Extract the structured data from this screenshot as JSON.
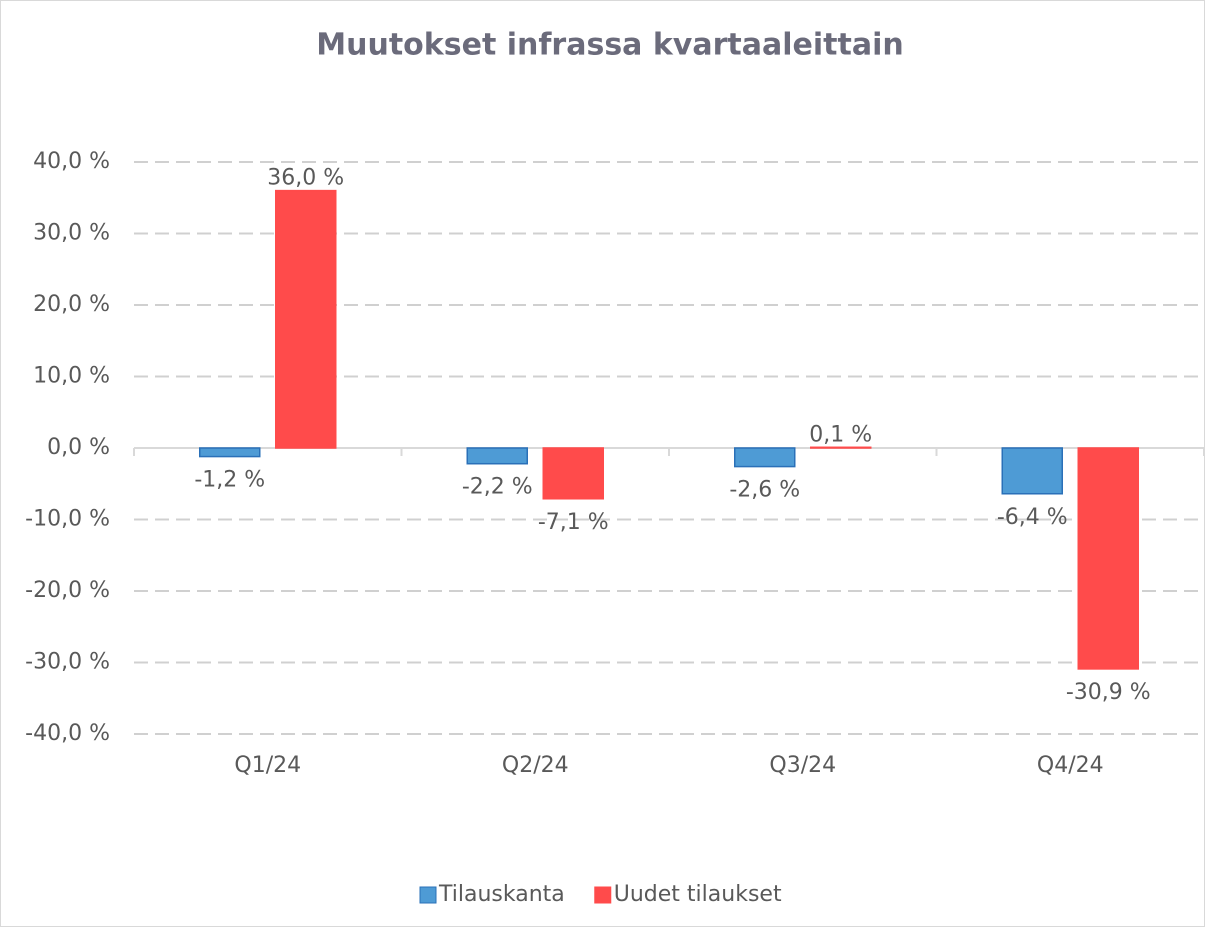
{
  "chart_data": {
    "type": "bar",
    "title": "Muutokset infrassa kvartaaleittain",
    "categories": [
      "Q1/24",
      "Q2/24",
      "Q3/24",
      "Q4/24"
    ],
    "series": [
      {
        "name": "Tilauskanta",
        "color": "#4e9bd5",
        "values": [
          -1.2,
          -2.2,
          -2.6,
          -6.4
        ],
        "value_labels": [
          "-1,2 %",
          "-2,2 %",
          "-2,6 %",
          "-6,4 %"
        ]
      },
      {
        "name": "Uudet tilaukset",
        "color": "#ff4b4b",
        "values": [
          36.0,
          -7.1,
          0.1,
          -30.9
        ],
        "value_labels": [
          "36,0 %",
          "-7,1 %",
          "0,1 %",
          "-30,9 %"
        ]
      }
    ],
    "ylim": [
      -40,
      40
    ],
    "yticks": [
      {
        "value": -40,
        "label": "-40,0 %"
      },
      {
        "value": -30,
        "label": "-30,0 %"
      },
      {
        "value": -20,
        "label": "-20,0 %"
      },
      {
        "value": -10,
        "label": "-10,0 %"
      },
      {
        "value": 0,
        "label": "0,0 %"
      },
      {
        "value": 10,
        "label": "10,0 %"
      },
      {
        "value": 20,
        "label": "20,0 %"
      },
      {
        "value": 30,
        "label": "30,0 %"
      },
      {
        "value": 40,
        "label": "40,0 %"
      }
    ],
    "grid": true,
    "legend": "bottom"
  }
}
